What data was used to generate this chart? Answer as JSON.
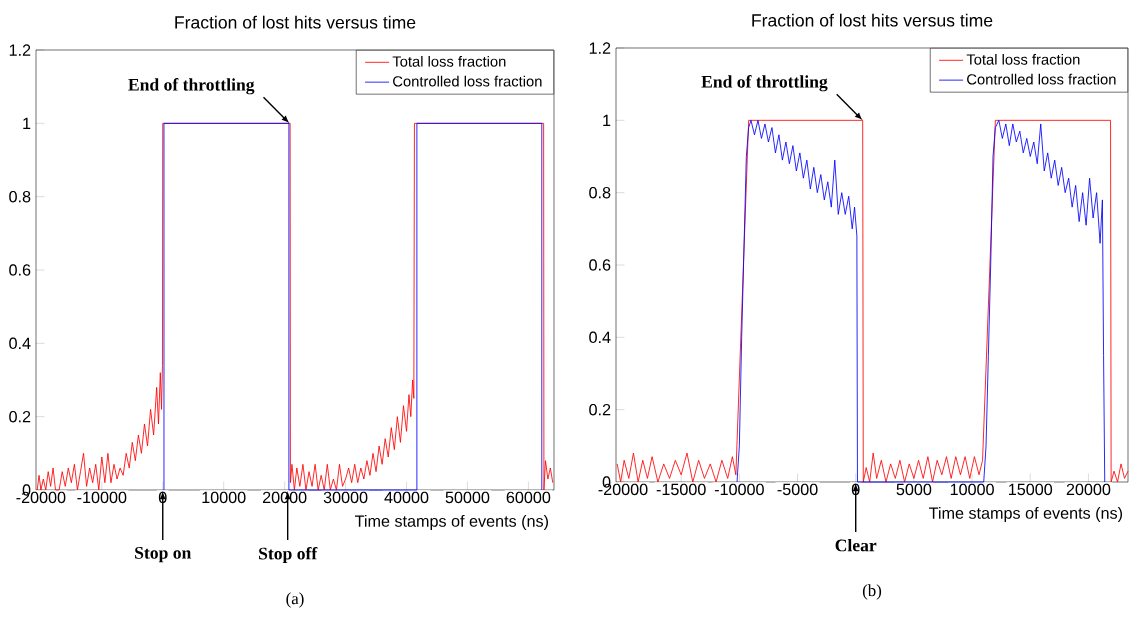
{
  "chart_data": [
    {
      "type": "line",
      "title": "Fraction of lost hits versus time",
      "xlabel": "Time stamps of events (ns)",
      "xlim": [
        -20800,
        64200
      ],
      "ylim": [
        0,
        1.2
      ],
      "xticks": [
        -20000,
        -10000,
        0,
        10000,
        20000,
        30000,
        40000,
        50000,
        60000
      ],
      "yticks": [
        0,
        0.2,
        0.4,
        0.6,
        0.8,
        1,
        1.2
      ],
      "legend": "top right",
      "series": [
        {
          "name": "Total loss fraction",
          "color": "#ff0000",
          "x": [
            -20600,
            -20300,
            -20000,
            -19600,
            -19200,
            -18800,
            -18400,
            -18000,
            -17600,
            -17000,
            -16500,
            -16000,
            -15500,
            -15000,
            -14500,
            -14000,
            -13500,
            -13000,
            -12500,
            -12000,
            -11500,
            -11000,
            -10500,
            -10000,
            -9500,
            -9000,
            -8500,
            -8000,
            -7500,
            -7000,
            -6500,
            -6000,
            -5500,
            -5000,
            -4500,
            -4000,
            -3500,
            -3000,
            -2500,
            -2000,
            -1500,
            -1000,
            -700,
            -400,
            -200,
            -50,
            0,
            20900,
            20950,
            21200,
            21600,
            22000,
            22500,
            23000,
            23500,
            24000,
            24500,
            25000,
            25500,
            26000,
            26500,
            27000,
            27500,
            28000,
            28500,
            29000,
            29500,
            30000,
            30500,
            31000,
            31500,
            32000,
            32500,
            33000,
            33500,
            34000,
            34500,
            35000,
            35500,
            36000,
            36500,
            37000,
            37500,
            38000,
            38500,
            39000,
            39500,
            40000,
            40400,
            40700,
            41000,
            41200,
            41300,
            62500,
            62550,
            62800,
            63200,
            63600,
            64000
          ],
          "values": [
            0.0,
            0.04,
            0.0,
            0.03,
            0.0,
            0.05,
            0.01,
            0.06,
            0.0,
            0.0,
            0.05,
            0.01,
            0.06,
            0.02,
            0.07,
            0.0,
            0.05,
            0.1,
            0.01,
            0.06,
            0.02,
            0.07,
            0.0,
            0.09,
            0.02,
            0.1,
            0.02,
            0.07,
            0.03,
            0.06,
            0.04,
            0.1,
            0.06,
            0.13,
            0.08,
            0.15,
            0.1,
            0.18,
            0.12,
            0.22,
            0.15,
            0.28,
            0.18,
            0.32,
            0.22,
            0.34,
            1.0,
            1.0,
            0.02,
            0.07,
            0.0,
            0.06,
            0.01,
            0.07,
            0.0,
            0.05,
            0.01,
            0.07,
            0.0,
            0.04,
            0.0,
            0.07,
            0.0,
            0.03,
            0.0,
            0.07,
            0.01,
            0.03,
            0.06,
            0.02,
            0.07,
            0.02,
            0.06,
            0.03,
            0.08,
            0.04,
            0.1,
            0.05,
            0.12,
            0.07,
            0.14,
            0.09,
            0.17,
            0.11,
            0.2,
            0.13,
            0.23,
            0.16,
            0.26,
            0.2,
            0.3,
            0.25,
            1.0,
            1.0,
            0.0,
            0.08,
            0.03,
            0.06,
            0.02
          ]
        },
        {
          "name": "Controlled loss fraction",
          "color": "#0000ff",
          "x": [
            200,
            200,
            20700,
            20700,
            41700,
            41700,
            62200,
            62200
          ],
          "values": [
            0,
            1,
            1,
            0,
            0,
            1,
            1,
            0
          ]
        }
      ],
      "annotations": [
        {
          "text": "End of throttling",
          "x": 20800,
          "y": 1
        },
        {
          "text": "Stop on",
          "x": 0,
          "y": 0
        },
        {
          "text": "Stop off",
          "x": 20500,
          "y": 0
        },
        "(a)"
      ]
    },
    {
      "type": "line",
      "title": "Fraction of lost hits versus time",
      "xlabel": "Time stamps of events (ns)",
      "xlim": [
        -20600,
        23400
      ],
      "ylim": [
        0,
        1.2
      ],
      "xticks": [
        -20000,
        -15000,
        -10000,
        -5000,
        0,
        5000,
        10000,
        15000,
        20000
      ],
      "yticks": [
        0,
        0.2,
        0.4,
        0.6,
        0.8,
        1,
        1.2
      ],
      "legend": "top right",
      "series": [
        {
          "name": "Total loss fraction",
          "color": "#ff0000",
          "x": [
            -20500,
            -20200,
            -19900,
            -19500,
            -19100,
            -18700,
            -18300,
            -17900,
            -17500,
            -17000,
            -16500,
            -16000,
            -15500,
            -15000,
            -14500,
            -14000,
            -13500,
            -13000,
            -12500,
            -12000,
            -11500,
            -11000,
            -10600,
            -10300,
            -9200,
            600,
            650,
            900,
            1200,
            1500,
            1800,
            2200,
            2600,
            3000,
            3400,
            3800,
            4200,
            4600,
            5000,
            5400,
            5800,
            6200,
            6600,
            7000,
            7400,
            7800,
            8200,
            8600,
            9000,
            9400,
            9800,
            10200,
            10600,
            10900,
            12000,
            21900,
            21950,
            22200,
            22500,
            22800,
            23100,
            23400
          ],
          "values": [
            0.05,
            0.0,
            0.06,
            0.01,
            0.08,
            0.0,
            0.06,
            0.01,
            0.07,
            0.0,
            0.05,
            0.01,
            0.06,
            0.02,
            0.08,
            0.0,
            0.06,
            0.01,
            0.05,
            0.0,
            0.06,
            0.01,
            0.07,
            0.02,
            1.0,
            1.0,
            0.0,
            0.04,
            0.0,
            0.08,
            0.01,
            0.06,
            0.0,
            0.05,
            0.01,
            0.06,
            0.0,
            0.05,
            0.01,
            0.06,
            0.01,
            0.07,
            0.0,
            0.06,
            0.02,
            0.07,
            0.01,
            0.07,
            0.02,
            0.07,
            0.01,
            0.07,
            0.02,
            0.06,
            1.0,
            1.0,
            0.0,
            0.03,
            0.0,
            0.05,
            0.01,
            0.03
          ]
        },
        {
          "name": "Controlled loss fraction",
          "color": "#0000ff",
          "x": [
            -10200,
            -10000,
            -9800,
            -9600,
            -9400,
            -9200,
            -9000,
            -8700,
            -8400,
            -8100,
            -7800,
            -7500,
            -7200,
            -6900,
            -6600,
            -6300,
            -6000,
            -5700,
            -5400,
            -5100,
            -4800,
            -4500,
            -4200,
            -3900,
            -3600,
            -3300,
            -3000,
            -2700,
            -2400,
            -2100,
            -1800,
            -1500,
            -1200,
            -900,
            -600,
            -300,
            -100,
            100,
            150,
            11000,
            11200,
            11400,
            11600,
            11800,
            12000,
            12300,
            12600,
            12900,
            13200,
            13500,
            13800,
            14100,
            14400,
            14700,
            15000,
            15300,
            15600,
            15900,
            16200,
            16500,
            16800,
            17100,
            17400,
            17700,
            18000,
            18300,
            18600,
            18900,
            19200,
            19500,
            19800,
            20100,
            20400,
            20700,
            21000,
            21200,
            21300,
            21400
          ],
          "values": [
            0,
            0.1,
            0.4,
            0.65,
            0.9,
            0.98,
            1.0,
            0.96,
            1.0,
            0.95,
            0.99,
            0.94,
            0.98,
            0.91,
            0.96,
            0.89,
            0.94,
            0.88,
            0.93,
            0.86,
            0.91,
            0.84,
            0.89,
            0.81,
            0.87,
            0.8,
            0.85,
            0.78,
            0.83,
            0.76,
            0.89,
            0.74,
            0.8,
            0.74,
            0.79,
            0.7,
            0.76,
            0.68,
            0.0,
            0,
            0.1,
            0.35,
            0.6,
            0.9,
            0.98,
            1.0,
            0.95,
            0.99,
            0.93,
            0.99,
            0.94,
            0.97,
            0.91,
            0.95,
            0.9,
            0.94,
            0.88,
            0.99,
            0.86,
            0.91,
            0.84,
            0.89,
            0.82,
            0.87,
            0.8,
            0.84,
            0.76,
            0.82,
            0.72,
            0.8,
            0.71,
            0.84,
            0.73,
            0.8,
            0.66,
            0.78,
            0.35,
            0
          ]
        }
      ],
      "annotations": [
        {
          "text": "End of throttling",
          "x": 600,
          "y": 1
        },
        {
          "text": "Clear",
          "x": 0,
          "y": 0
        },
        "(b)"
      ]
    }
  ]
}
